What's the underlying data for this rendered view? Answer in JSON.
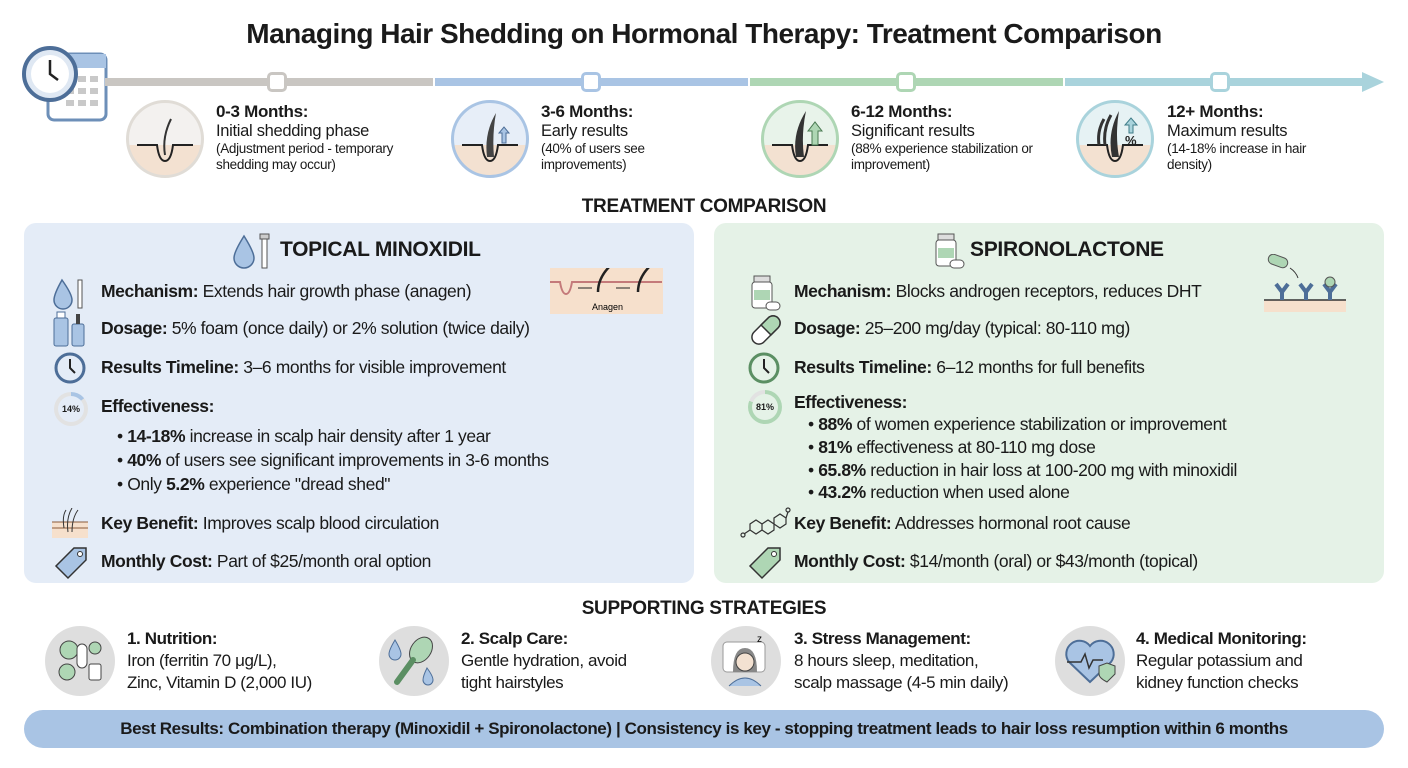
{
  "title": "Managing Hair Shedding on Hormonal Therapy: Treatment Comparison",
  "colors": {
    "gray": "#c9c6c2",
    "blue": "#a9c4e4",
    "green": "#aed6b4",
    "teal": "#a9d3dc",
    "panel_left": "#e4ecf7",
    "panel_right": "#e5f2e7"
  },
  "timeline": [
    {
      "title": "0-3 Months:",
      "subtitle": "Initial shedding phase",
      "detail": "(Adjustment period - temporary shedding may occur)"
    },
    {
      "title": "3-6 Months:",
      "subtitle": "Early results",
      "detail": "(40% of users see improvements)"
    },
    {
      "title": "6-12 Months:",
      "subtitle": "Significant results",
      "detail": "(88% experience stabilization or improvement)"
    },
    {
      "title": "12+ Months:",
      "subtitle": "Maximum results",
      "detail": "(14-18% increase in hair density)"
    }
  ],
  "comparison_heading": "TREATMENT COMPARISON",
  "minoxidil": {
    "heading": "TOPICAL MINOXIDIL",
    "mechanism": {
      "label": "Mechanism:",
      "value": "Extends hair growth phase (anagen)"
    },
    "anagen_label": "Anagen",
    "dosage": {
      "label": "Dosage:",
      "value": "5% foam (once daily) or 2% solution (twice daily)"
    },
    "timeline": {
      "label": "Results Timeline:",
      "value": "3–6 months for visible improvement"
    },
    "effectiveness": {
      "label": "Effectiveness:",
      "badge": "14%",
      "badge_fraction": 0.14,
      "bullets": [
        {
          "pre": "",
          "bold": "14-18%",
          "text": " increase in scalp hair density after 1 year"
        },
        {
          "pre": "",
          "bold": "40%",
          "text": " of users see significant improvements in 3-6 months"
        },
        {
          "pre": "Only ",
          "bold": "5.2%",
          "text": " experience \"dread shed\""
        }
      ]
    },
    "benefit": {
      "label": "Key Benefit:",
      "value": "Improves scalp blood circulation"
    },
    "cost": {
      "label": "Monthly Cost:",
      "value": "Part of $25/month oral option"
    }
  },
  "spironolactone": {
    "heading": "SPIRONOLACTONE",
    "mechanism": {
      "label": "Mechanism:",
      "value": "Blocks androgen receptors, reduces DHT"
    },
    "dosage": {
      "label": "Dosage:",
      "value": "25–200 mg/day (typical: 80-110 mg)"
    },
    "timeline": {
      "label": "Results Timeline:",
      "value": "6–12 months for full benefits"
    },
    "effectiveness": {
      "label": "Effectiveness:",
      "badge": "81%",
      "badge_fraction": 0.81,
      "bullets": [
        {
          "bold": "88%",
          "text": " of women experience stabilization or improvement"
        },
        {
          "bold": "81%",
          "text": " effectiveness at 80-110 mg dose"
        },
        {
          "bold": "65.8%",
          "text": " reduction in hair loss at 100-200 mg with minoxidil"
        },
        {
          "bold": "43.2%",
          "text": " reduction when used alone"
        }
      ]
    },
    "benefit": {
      "label": "Key Benefit:",
      "value": "Addresses hormonal root cause"
    },
    "cost": {
      "label": "Monthly Cost:",
      "value": "$14/month (oral) or $43/month (topical)"
    }
  },
  "supporting_heading": "SUPPORTING STRATEGIES",
  "strategies": [
    {
      "title": "1. Nutrition:",
      "l1": "Iron (ferritin 70 μg/L),",
      "l2": "Zinc, Vitamin D (2,000 IU)",
      "icon": "nutrition-icon"
    },
    {
      "title": "2. Scalp Care:",
      "l1": "Gentle hydration, avoid",
      "l2": "tight hairstyles",
      "icon": "brush-icon"
    },
    {
      "title": "3. Stress Management:",
      "l1": "8 hours sleep, meditation,",
      "l2": "scalp massage (4-5 min daily)",
      "icon": "sleep-icon"
    },
    {
      "title": "4. Medical Monitoring:",
      "l1": "Regular potassium and",
      "l2": "kidney function checks",
      "icon": "heart-monitor-icon"
    }
  ],
  "banner": "Best Results: Combination therapy (Minoxidil + Spironolactone) | Consistency is key - stopping treatment leads to hair loss resumption within 6 months"
}
